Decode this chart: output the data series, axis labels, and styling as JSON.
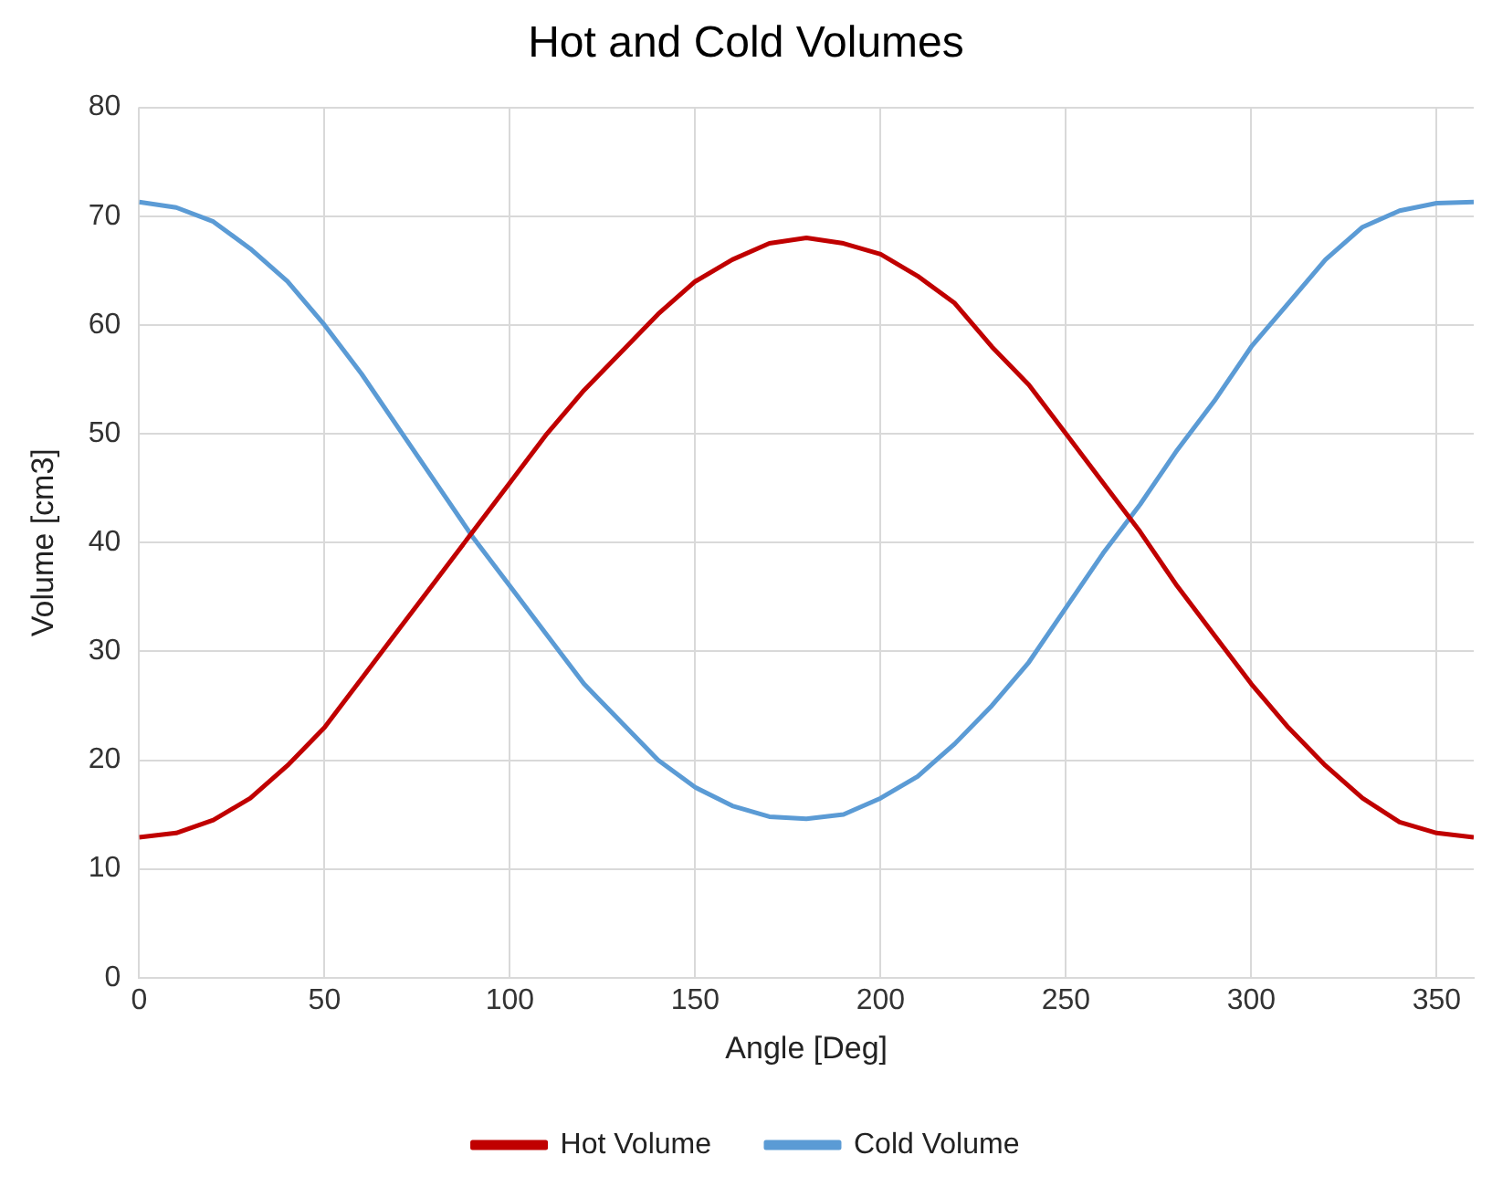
{
  "chart_data": {
    "type": "line",
    "title": "Hot and Cold Volumes",
    "xlabel": "Angle [Deg]",
    "ylabel": "Volume [cm3]",
    "x": [
      0,
      10,
      20,
      30,
      40,
      50,
      60,
      70,
      80,
      90,
      100,
      110,
      120,
      130,
      140,
      150,
      160,
      170,
      180,
      190,
      200,
      210,
      220,
      230,
      240,
      250,
      260,
      270,
      280,
      290,
      300,
      310,
      320,
      330,
      340,
      350,
      360
    ],
    "series": [
      {
        "name": "Hot Volume",
        "color": "#c00000",
        "values": [
          12.9,
          13.3,
          14.5,
          16.5,
          19.5,
          23,
          27.5,
          32,
          36.5,
          41,
          45.5,
          50,
          54,
          57.5,
          61,
          64,
          66,
          67.5,
          68,
          67.5,
          66.5,
          64.5,
          62,
          58,
          54.5,
          50,
          45.5,
          41,
          36,
          31.5,
          27,
          23,
          19.5,
          16.5,
          14.3,
          13.3,
          12.9
        ]
      },
      {
        "name": "Cold Volume",
        "color": "#5b9bd5",
        "values": [
          71.3,
          70.8,
          69.5,
          67,
          64,
          60,
          55.5,
          50.5,
          45.5,
          40.5,
          36,
          31.5,
          27,
          23.5,
          20,
          17.5,
          15.8,
          14.8,
          14.6,
          15,
          16.5,
          18.5,
          21.5,
          25,
          29,
          34,
          39,
          43.5,
          48.5,
          53,
          58,
          62,
          66,
          69,
          70.5,
          71.2,
          71.3
        ]
      }
    ],
    "xlim": [
      0,
      360
    ],
    "xticks": [
      0,
      50,
      100,
      150,
      200,
      250,
      300,
      350
    ],
    "ylim": [
      0,
      80
    ],
    "yticks": [
      0,
      10,
      20,
      30,
      40,
      50,
      60,
      70,
      80
    ],
    "grid": true,
    "legend": "bottom",
    "marker": "none",
    "line_style": "solid"
  }
}
